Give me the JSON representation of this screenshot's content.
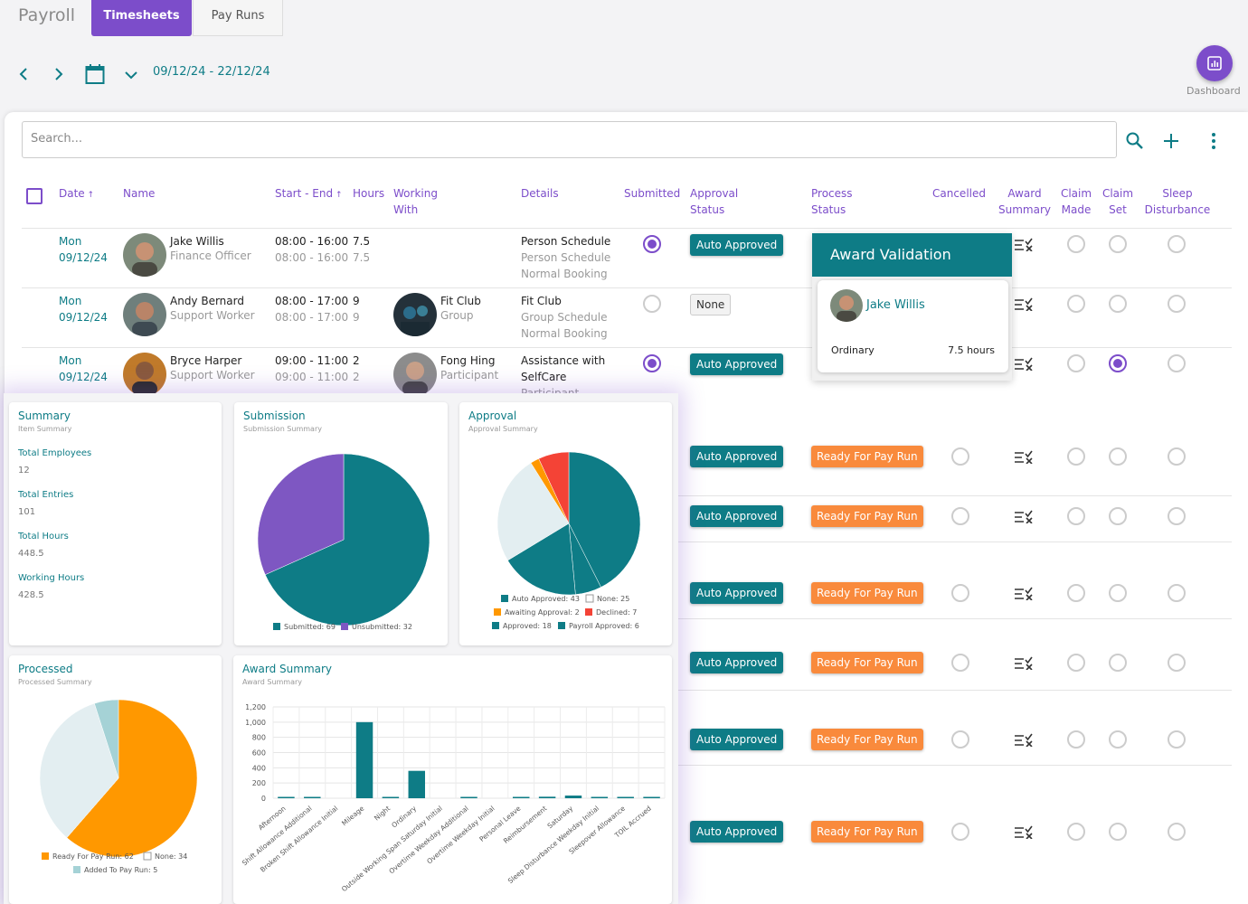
{
  "app": {
    "title": "Payroll"
  },
  "tabs": [
    {
      "label": "Timesheets",
      "active": true
    },
    {
      "label": "Pay Runs",
      "active": false
    }
  ],
  "date_range": "09/12/24 - 22/12/24",
  "dashboard_button": {
    "label": "Dashboard",
    "icon": "chart-icon"
  },
  "search": {
    "placeholder": "Search..."
  },
  "columns": [
    "Date",
    "Name",
    "Start - End",
    "Hours",
    "Working With",
    "Details",
    "Submitted",
    "Approval Status",
    "Process Status",
    "Cancelled",
    "Award Summary",
    "Claim Made",
    "Claim Set",
    "Sleep Disturbance"
  ],
  "rows": [
    {
      "day": "Mon",
      "date": "09/12/24",
      "name": "Jake Willis",
      "role": "Finance Officer",
      "start_end": "08:00 - 16:00",
      "start_end_actual": "08:00 - 16:00",
      "hours": "7.5",
      "hours_actual": "7.5",
      "working_with": "",
      "working_with_role": "",
      "details": [
        "Person Schedule",
        "Person Schedule",
        "Normal Booking"
      ],
      "submitted": true,
      "approval": "Auto Approved",
      "process": "",
      "claim_set": false
    },
    {
      "day": "Mon",
      "date": "09/12/24",
      "name": "Andy Bernard",
      "role": "Support Worker",
      "start_end": "08:00 - 17:00",
      "start_end_actual": "08:00 - 17:00",
      "hours": "9",
      "hours_actual": "9",
      "working_with": "Fit Club",
      "working_with_role": "Group",
      "details": [
        "Fit Club",
        "Group Schedule",
        "Normal Booking"
      ],
      "submitted": false,
      "approval": "None",
      "process": "",
      "claim_set": false
    },
    {
      "day": "Mon",
      "date": "09/12/24",
      "name": "Bryce Harper",
      "role": "Support Worker",
      "start_end": "09:00 - 11:00",
      "start_end_actual": "09:00 - 11:00",
      "hours": "2",
      "hours_actual": "2",
      "working_with": "Fong Hing",
      "working_with_role": "Participant",
      "details": [
        "Assistance with",
        "SelfCare",
        "Participant"
      ],
      "submitted": true,
      "approval": "Auto Approved",
      "process": "",
      "claim_set": true
    }
  ],
  "lower_rows": [
    {
      "approval": "Auto Approved",
      "process": "Ready For Pay Run"
    },
    {
      "approval": "Auto Approved",
      "process": "Ready For Pay Run"
    },
    {
      "approval": "Auto Approved",
      "process": "Ready For Pay Run"
    },
    {
      "approval": "Auto Approved",
      "process": "Ready For Pay Run"
    },
    {
      "approval": "Auto Approved",
      "process": "Ready For Pay Run"
    },
    {
      "approval": "Auto Approved",
      "process": "Ready For Pay Run"
    }
  ],
  "award_popup": {
    "title": "Award Validation",
    "name": "Jake Willis",
    "type": "Ordinary",
    "hours": "7.5 hours"
  },
  "colors": {
    "accent": "#7c4dca",
    "teal": "#0e7c86",
    "orange": "#f98a3c"
  },
  "dashboard": {
    "summary": {
      "title": "Summary",
      "subtitle": "Item Summary",
      "items": [
        {
          "label": "Total Employees",
          "value": "12"
        },
        {
          "label": "Total Entries",
          "value": "101"
        },
        {
          "label": "Total Hours",
          "value": "448.5"
        },
        {
          "label": "Working Hours",
          "value": "428.5"
        }
      ]
    },
    "submission": {
      "title": "Submission",
      "subtitle": "Submission Summary"
    },
    "approval": {
      "title": "Approval",
      "subtitle": "Approval Summary"
    },
    "processed": {
      "title": "Processed",
      "subtitle": "Processed Summary"
    },
    "award": {
      "title": "Award Summary",
      "subtitle": "Award Summary"
    }
  },
  "chart_data": [
    {
      "type": "pie",
      "title": "Submission",
      "series": [
        {
          "name": "Submitted",
          "value": 69,
          "color": "#0e7c86"
        },
        {
          "name": "Unsubmitted",
          "value": 32,
          "color": "#7e57c2"
        }
      ]
    },
    {
      "type": "pie",
      "title": "Approval",
      "series": [
        {
          "name": "Auto Approved",
          "value": 43,
          "color": "#0e7c86"
        },
        {
          "name": "None",
          "value": 25,
          "color": "#e3eef1"
        },
        {
          "name": "Awaiting Approval",
          "value": 2,
          "color": "#ff9800"
        },
        {
          "name": "Declined",
          "value": 7,
          "color": "#f44336"
        },
        {
          "name": "Approved",
          "value": 18,
          "color": "#0e7c86"
        },
        {
          "name": "Payroll Approved",
          "value": 6,
          "color": "#0e7c86"
        }
      ]
    },
    {
      "type": "pie",
      "title": "Processed",
      "series": [
        {
          "name": "Ready For Pay Run",
          "value": 62,
          "color": "#ff9800"
        },
        {
          "name": "None",
          "value": 34,
          "color": "#e3eef1"
        },
        {
          "name": "Added To Pay Run",
          "value": 5,
          "color": "#a5d2d6"
        }
      ]
    },
    {
      "type": "bar",
      "title": "Award Summary",
      "categories": [
        "Afternoon",
        "Shift Allowance Additional",
        "Broken Shift Allowance Initial",
        "Mileage",
        "Night",
        "Ordinary",
        "Outside Working Span Saturday Initial",
        "Overtime Weekday Additional",
        "Overtime Weekday Initial",
        "Personal Leave",
        "Reimbursement",
        "Saturday",
        "Sleep Disturbance Weekday Initial",
        "Sleepover Allowance",
        "TOIL Accrued"
      ],
      "values": [
        15,
        3,
        0,
        1000,
        8,
        360,
        0,
        2,
        0,
        5,
        20,
        35,
        5,
        3,
        2
      ],
      "ylim": [
        0,
        1200
      ],
      "yticks": [
        "0",
        "200",
        "400",
        "600",
        "800",
        "1,000",
        "1,200"
      ],
      "color": "#0e7c86"
    }
  ]
}
